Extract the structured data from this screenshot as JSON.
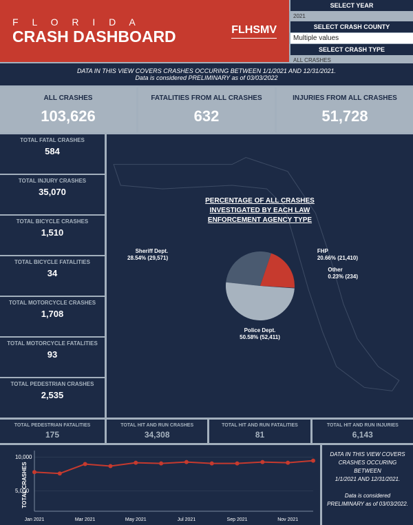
{
  "header": {
    "title_line1": "F L O R I D A",
    "title_line2": "CRASH DASHBOARD",
    "logo": "FLHSMV"
  },
  "selectors": {
    "year_label": "SELECT YEAR",
    "year_value": "2021",
    "county_label": "SELECT CRASH COUNTY",
    "county_value": "Multiple values",
    "type_label": "SELECT CRASH TYPE",
    "type_value": "ALL CRASHES"
  },
  "banner": {
    "line1": "DATA IN THIS VIEW COVERS CRASHES OCCURING BETWEEN 1/1/2021 AND 12/31/2021.",
    "line2": "Data is considered PRELIMINARY as of  03/03/2022"
  },
  "top_stats": [
    {
      "label": "ALL CRASHES",
      "value": "103,626"
    },
    {
      "label": "FATALITIES FROM ALL CRASHES",
      "value": "632"
    },
    {
      "label": "INJURIES FROM ALL CRASHES",
      "value": "51,728"
    }
  ],
  "left_stats": [
    {
      "label": "TOTAL FATAL CRASHES",
      "value": "584"
    },
    {
      "label": "TOTAL INJURY CRASHES",
      "value": "35,070"
    },
    {
      "label": "TOTAL BICYCLE CRASHES",
      "value": "1,510"
    },
    {
      "label": "TOTAL BICYCLE FATALITIES",
      "value": "34"
    },
    {
      "label": "TOTAL MOTORCYCLE CRASHES",
      "value": "1,708"
    },
    {
      "label": "TOTAL MOTORCYCLE FATALITIES",
      "value": "93"
    },
    {
      "label": "TOTAL PEDESTRIAN CRASHES",
      "value": "2,535"
    }
  ],
  "pie": {
    "title_l1": "PERCENTAGE OF ALL CRASHES",
    "title_l2": "INVESTIGATED BY EACH LAW",
    "title_l3": "ENFORCEMENT AGENCY TYPE",
    "slices": [
      {
        "name": "Police Dept.",
        "pct": 50.58,
        "count": "52,411",
        "color": "#a7b3bf"
      },
      {
        "name": "Sheriff Dept.",
        "pct": 28.54,
        "count": "29,571",
        "color": "#4a5a70"
      },
      {
        "name": "FHP",
        "pct": 20.66,
        "count": "21,410",
        "color": "#c63a2e"
      },
      {
        "name": "Other",
        "pct": 0.23,
        "count": "234",
        "color": "#2c3a52"
      }
    ],
    "label_sheriff": "Sheriff Dept.\n28.54% (29,571)",
    "label_fhp": "FHP\n20.66% (21,410)",
    "label_other": "Other\n0.23% (234)",
    "label_police": "Police Dept.\n50.58% (52,411)"
  },
  "bottom_stats": [
    {
      "label": "TOTAL PEDESTRIAN FATALITIES",
      "value": "175"
    },
    {
      "label": "TOTAL HIT AND RUN CRASHES",
      "value": "34,308"
    },
    {
      "label": "TOTAL HIT AND RUN FATALITIES",
      "value": "81"
    },
    {
      "label": "TOTAL HIT AND RUN INJURIES",
      "value": "6,143"
    }
  ],
  "line_chart": {
    "y_label": "TOTAL CRASHES",
    "y_ticks": [
      "10,000",
      "5,000"
    ],
    "x_ticks": [
      "Jan 2021",
      "Mar 2021",
      "May 2021",
      "Jul 2021",
      "Sep 2021",
      "Nov 2021"
    ],
    "values": [
      7800,
      7600,
      9000,
      8700,
      9200,
      9100,
      9300,
      9100,
      9100,
      9300,
      9200,
      9500
    ],
    "ylim": [
      2000,
      11000
    ],
    "line_color": "#c63a2e",
    "point_color": "#c63a2e",
    "bg": "#1c2a45"
  },
  "note": {
    "l1": "DATA IN THIS VIEW COVERS",
    "l2": "CRASHES OCCURING BETWEEN",
    "l3": "1/1/2021 AND 12/31/2021.",
    "l4": "Data is considered PRELIMINARY as of 03/03/2022."
  },
  "colors": {
    "accent": "#c63a2e",
    "dark": "#1c2a45",
    "grey": "#a7b3bf",
    "white": "#ffffff"
  }
}
